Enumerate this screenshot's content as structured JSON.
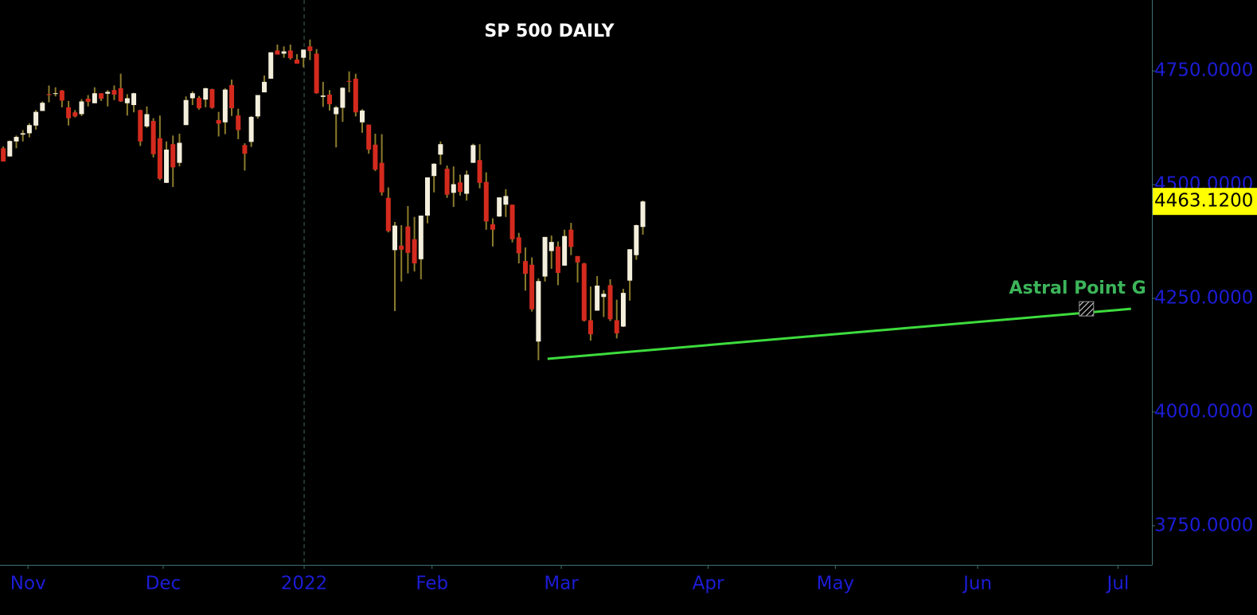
{
  "chart_data": {
    "type": "candlestick",
    "title": "SP 500 DAILY",
    "xlim": [
      -0.5,
      176
    ],
    "xticks": [
      {
        "value": 3.8,
        "label": "Nov"
      },
      {
        "value": 24.5,
        "label": "Dec"
      },
      {
        "value": 46.1,
        "label": "2022"
      },
      {
        "value": 65.7,
        "label": "Feb"
      },
      {
        "value": 85.5,
        "label": "Mar"
      },
      {
        "value": 108.0,
        "label": "Apr"
      },
      {
        "value": 127.5,
        "label": "May"
      },
      {
        "value": 149.3,
        "label": "Jun"
      },
      {
        "value": 170.8,
        "label": "Jul"
      }
    ],
    "separator_x": 46.1,
    "ylim": [
      3664,
      4906
    ],
    "yticks": [
      {
        "value": 3750,
        "label": "3750.0000"
      },
      {
        "value": 4000,
        "label": "4000.0000"
      },
      {
        "value": 4250,
        "label": "4250.0000"
      },
      {
        "value": 4500,
        "label": "4500.0000"
      },
      {
        "value": 4750,
        "label": "4750.0000"
      }
    ],
    "last_price": {
      "value": 4463.12,
      "label": "4463.1200"
    },
    "up_color": "#f4efdc",
    "down_color": "#d42a1e",
    "wick_color": "#8b7c2c",
    "ohlc": [
      [
        4580,
        4584,
        4551,
        4551
      ],
      [
        4562,
        4597,
        4562,
        4596
      ],
      [
        4595,
        4608,
        4580,
        4605
      ],
      [
        4610,
        4620,
        4595,
        4613
      ],
      [
        4613,
        4635,
        4604,
        4631
      ],
      [
        4630,
        4664,
        4621,
        4660
      ],
      [
        4662,
        4683,
        4662,
        4680
      ],
      [
        4699,
        4718,
        4681,
        4697
      ],
      [
        4701,
        4714,
        4694,
        4701
      ],
      [
        4707,
        4708,
        4670,
        4685
      ],
      [
        4670,
        4684,
        4630,
        4646
      ],
      [
        4659,
        4664,
        4648,
        4650
      ],
      [
        4655,
        4688,
        4651,
        4683
      ],
      [
        4689,
        4697,
        4672,
        4682
      ],
      [
        4679,
        4714,
        4679,
        4701
      ],
      [
        4701,
        4701,
        4684,
        4689
      ],
      [
        4700,
        4708,
        4672,
        4704
      ],
      [
        4708,
        4718,
        4686,
        4698
      ],
      [
        4712,
        4744,
        4682,
        4683
      ],
      [
        4679,
        4699,
        4652,
        4690
      ],
      [
        4675,
        4702,
        4659,
        4701
      ],
      [
        4664,
        4665,
        4585,
        4595
      ],
      [
        4628,
        4672,
        4625,
        4655
      ],
      [
        4640,
        4646,
        4560,
        4567
      ],
      [
        4602,
        4652,
        4510,
        4513
      ],
      [
        4504,
        4595,
        4504,
        4577
      ],
      [
        4589,
        4608,
        4495,
        4538
      ],
      [
        4548,
        4612,
        4540,
        4592
      ],
      [
        4631,
        4694,
        4631,
        4686
      ],
      [
        4690,
        4705,
        4675,
        4701
      ],
      [
        4691,
        4695,
        4665,
        4668
      ],
      [
        4687,
        4713,
        4670,
        4712
      ],
      [
        4710,
        4711,
        4667,
        4669
      ],
      [
        4642,
        4660,
        4606,
        4634
      ],
      [
        4637,
        4712,
        4611,
        4709
      ],
      [
        4719,
        4731,
        4651,
        4668
      ],
      [
        4652,
        4667,
        4600,
        4620
      ],
      [
        4587,
        4591,
        4531,
        4568
      ],
      [
        4594,
        4651,
        4583,
        4649
      ],
      [
        4650,
        4697,
        4645,
        4697
      ],
      [
        4703,
        4740,
        4703,
        4726
      ],
      [
        4733,
        4791,
        4733,
        4791
      ],
      [
        4795,
        4808,
        4786,
        4786
      ],
      [
        4788,
        4804,
        4779,
        4793
      ],
      [
        4795,
        4808,
        4775,
        4778
      ],
      [
        4775,
        4787,
        4766,
        4766
      ],
      [
        4779,
        4797,
        4758,
        4797
      ],
      [
        4804,
        4819,
        4774,
        4794
      ],
      [
        4788,
        4798,
        4700,
        4701
      ],
      [
        4693,
        4726,
        4671,
        4696
      ],
      [
        4698,
        4708,
        4663,
        4677
      ],
      [
        4655,
        4673,
        4582,
        4670
      ],
      [
        4669,
        4714,
        4638,
        4713
      ],
      [
        4728,
        4749,
        4703,
        4726
      ],
      [
        4733,
        4744,
        4650,
        4659
      ],
      [
        4637,
        4666,
        4614,
        4663
      ],
      [
        4632,
        4632,
        4568,
        4577
      ],
      [
        4588,
        4612,
        4530,
        4533
      ],
      [
        4548,
        4611,
        4476,
        4483
      ],
      [
        4471,
        4494,
        4395,
        4398
      ],
      [
        4356,
        4418,
        4222,
        4410
      ],
      [
        4366,
        4411,
        4287,
        4357
      ],
      [
        4408,
        4453,
        4305,
        4350
      ],
      [
        4380,
        4429,
        4309,
        4327
      ],
      [
        4336,
        4432,
        4292,
        4432
      ],
      [
        4432,
        4516,
        4415,
        4516
      ],
      [
        4519,
        4547,
        4483,
        4546
      ],
      [
        4566,
        4595,
        4544,
        4589
      ],
      [
        4535,
        4542,
        4471,
        4478
      ],
      [
        4482,
        4540,
        4451,
        4501
      ],
      [
        4505,
        4522,
        4476,
        4484
      ],
      [
        4480,
        4531,
        4465,
        4522
      ],
      [
        4548,
        4590,
        4548,
        4587
      ],
      [
        4554,
        4589,
        4492,
        4504
      ],
      [
        4506,
        4527,
        4401,
        4419
      ],
      [
        4413,
        4426,
        4364,
        4401
      ],
      [
        4430,
        4472,
        4429,
        4472
      ],
      [
        4456,
        4490,
        4429,
        4475
      ],
      [
        4456,
        4456,
        4373,
        4380
      ],
      [
        4384,
        4394,
        4327,
        4349
      ],
      [
        4332,
        4362,
        4267,
        4304
      ],
      [
        4324,
        4340,
        4221,
        4226
      ],
      [
        4155,
        4294,
        4114,
        4288
      ],
      [
        4298,
        4385,
        4287,
        4385
      ],
      [
        4354,
        4388,
        4315,
        4374
      ],
      [
        4364,
        4375,
        4279,
        4306
      ],
      [
        4322,
        4401,
        4322,
        4387
      ],
      [
        4401,
        4416,
        4345,
        4363
      ],
      [
        4343,
        4343,
        4285,
        4329
      ],
      [
        4327,
        4328,
        4199,
        4201
      ],
      [
        4202,
        4276,
        4157,
        4171
      ],
      [
        4223,
        4299,
        4223,
        4278
      ],
      [
        4253,
        4268,
        4209,
        4260
      ],
      [
        4279,
        4292,
        4200,
        4204
      ],
      [
        4202,
        4247,
        4162,
        4173
      ],
      [
        4188,
        4271,
        4187,
        4262
      ],
      [
        4289,
        4358,
        4245,
        4358
      ],
      [
        4345,
        4412,
        4335,
        4411
      ],
      [
        4407,
        4465,
        4390,
        4463
      ]
    ],
    "trendline": {
      "label": "Astral Point G",
      "color": "#3ddc3d",
      "label_color": "#3cb55a",
      "x": [
        83.4,
        172.8
      ],
      "y": [
        4117,
        4227
      ]
    }
  }
}
